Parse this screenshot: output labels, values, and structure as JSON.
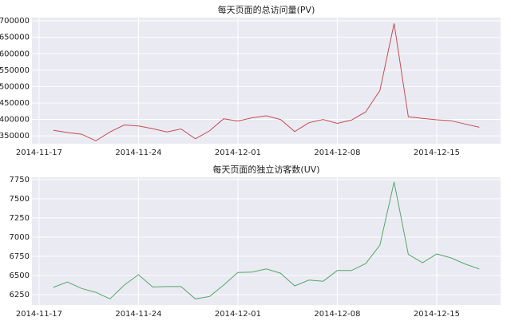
{
  "chart_data": [
    {
      "type": "line",
      "title": "每天页面的总访问量(PV)",
      "x": [
        "2014-11-18",
        "2014-11-19",
        "2014-11-20",
        "2014-11-21",
        "2014-11-22",
        "2014-11-23",
        "2014-11-24",
        "2014-11-25",
        "2014-11-26",
        "2014-11-27",
        "2014-11-28",
        "2014-11-29",
        "2014-11-30",
        "2014-12-01",
        "2014-12-02",
        "2014-12-03",
        "2014-12-04",
        "2014-12-05",
        "2014-12-06",
        "2014-12-07",
        "2014-12-08",
        "2014-12-09",
        "2014-12-10",
        "2014-12-11",
        "2014-12-12",
        "2014-12-13",
        "2014-12-14",
        "2014-12-15",
        "2014-12-16",
        "2014-12-17",
        "2014-12-18"
      ],
      "series": [
        {
          "name": "PV",
          "color": "#c44e52",
          "values": [
            367000,
            360000,
            355000,
            335000,
            362000,
            383000,
            380000,
            372000,
            362000,
            371000,
            341000,
            365000,
            402000,
            395000,
            405000,
            411000,
            400000,
            363000,
            390000,
            400000,
            388000,
            398000,
            423000,
            488000,
            692000,
            408000,
            403000,
            399000,
            396000,
            386000,
            376000
          ]
        }
      ],
      "xlim": [
        "2014-11-16T12:00",
        "2014-12-19T12:00"
      ],
      "xticks": [
        "2014-11-17",
        "2014-11-24",
        "2014-12-01",
        "2014-12-08",
        "2014-12-15"
      ],
      "ylim": [
        326000,
        710000
      ],
      "yticks": [
        350000,
        400000,
        450000,
        500000,
        550000,
        600000,
        650000,
        700000
      ],
      "grid": true
    },
    {
      "type": "line",
      "title": "每天页面的独立访客数(UV)",
      "x": [
        "2014-11-18",
        "2014-11-19",
        "2014-11-20",
        "2014-11-21",
        "2014-11-22",
        "2014-11-23",
        "2014-11-24",
        "2014-11-25",
        "2014-11-26",
        "2014-11-27",
        "2014-11-28",
        "2014-11-29",
        "2014-11-30",
        "2014-12-01",
        "2014-12-02",
        "2014-12-03",
        "2014-12-04",
        "2014-12-05",
        "2014-12-06",
        "2014-12-07",
        "2014-12-08",
        "2014-12-09",
        "2014-12-10",
        "2014-12-11",
        "2014-12-12",
        "2014-12-13",
        "2014-12-14",
        "2014-12-15",
        "2014-12-16",
        "2014-12-17",
        "2014-12-18"
      ],
      "series": [
        {
          "name": "UV",
          "color": "#55a868",
          "values": [
            6345,
            6415,
            6330,
            6280,
            6195,
            6375,
            6510,
            6350,
            6355,
            6355,
            6195,
            6225,
            6375,
            6540,
            6545,
            6585,
            6530,
            6365,
            6440,
            6425,
            6565,
            6565,
            6655,
            6895,
            7720,
            6775,
            6665,
            6780,
            6730,
            6650,
            6585
          ]
        }
      ],
      "xlim": [
        "2014-11-16T12:00",
        "2014-12-19T12:00"
      ],
      "xticks": [
        "2014-11-17",
        "2014-11-24",
        "2014-12-01",
        "2014-12-08",
        "2014-12-15"
      ],
      "ylim": [
        6115,
        7780
      ],
      "yticks": [
        6250,
        6500,
        6750,
        7000,
        7250,
        7500,
        7750
      ],
      "grid": true
    }
  ]
}
